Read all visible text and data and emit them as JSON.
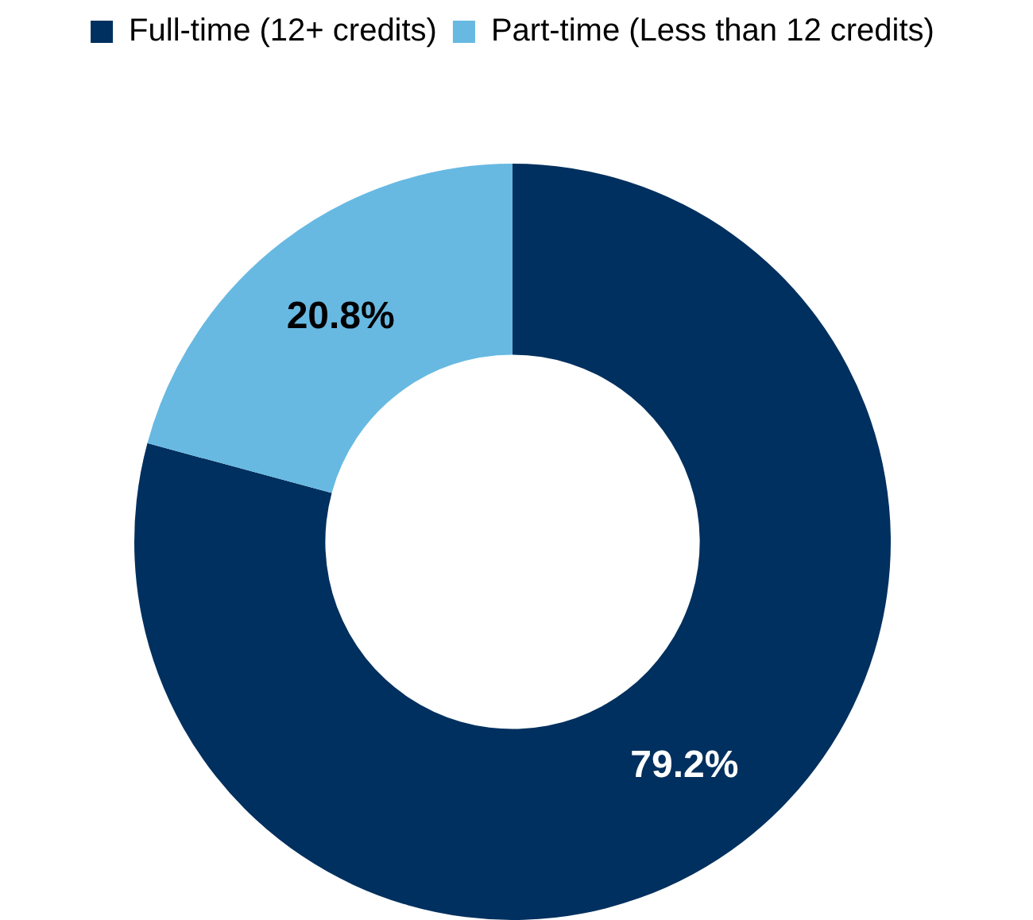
{
  "chart_data": {
    "type": "donut",
    "categories": [
      "Full-time (12+ credits)",
      "Part-time (Less than 12 credits)"
    ],
    "values": [
      79.2,
      20.8
    ],
    "colors": [
      "#00305f",
      "#67b9e2"
    ],
    "value_labels": [
      "79.2%",
      "20.8%"
    ],
    "legend": "top"
  }
}
